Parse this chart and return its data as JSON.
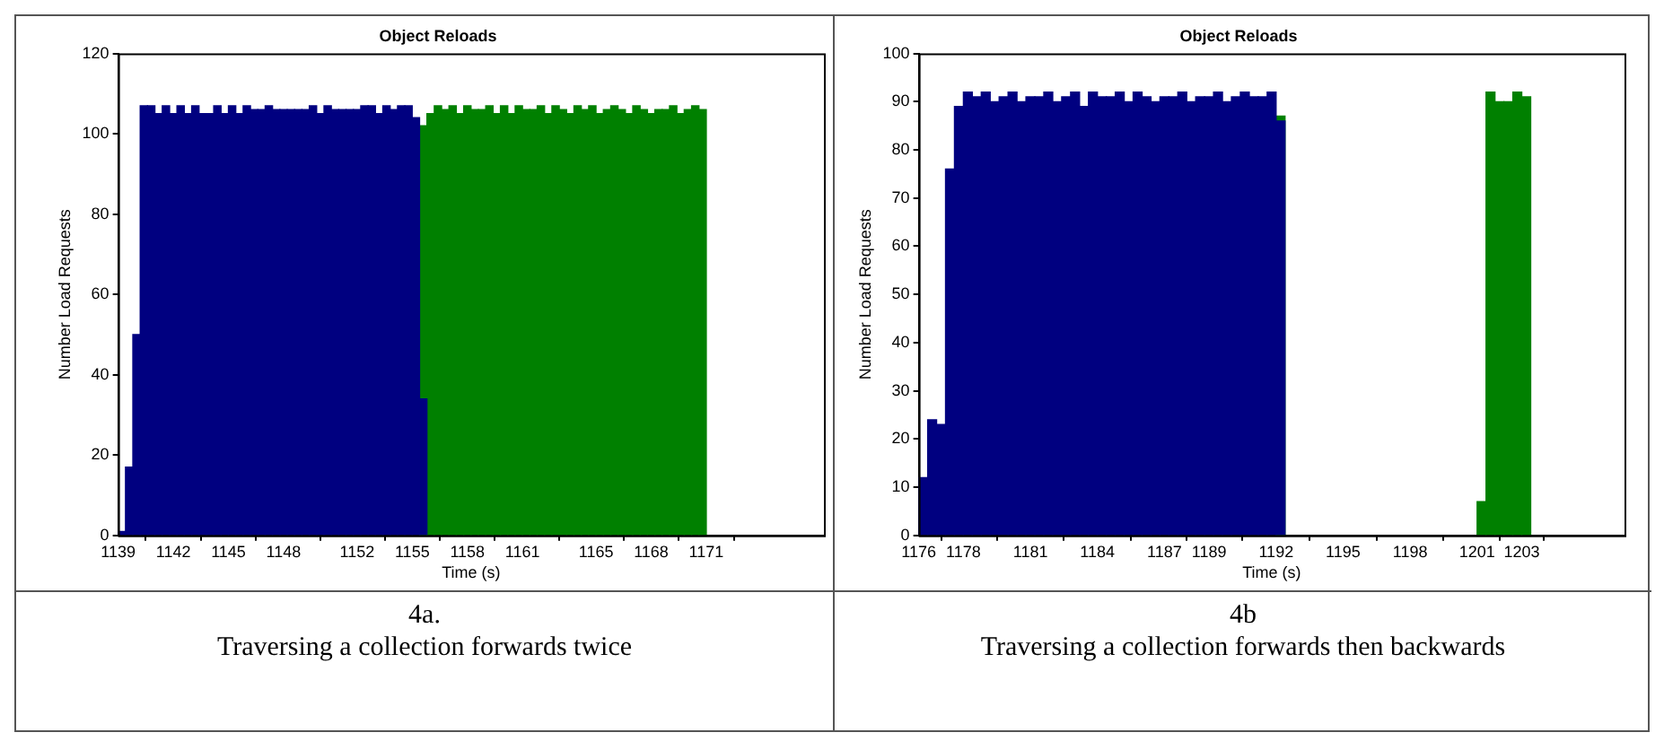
{
  "chart_data": [
    {
      "type": "bar",
      "title": "Object Reloads",
      "xlabel": "Time (s)",
      "ylabel": "Number Load Requests",
      "annotations": [
        "4a.",
        "Traversing a collection forwards twice"
      ],
      "xlim": [
        1139,
        1177.4
      ],
      "xticks": [
        1139,
        1142,
        1145,
        1148,
        1152,
        1155,
        1158,
        1161,
        1165,
        1168,
        1171
      ],
      "ylim": [
        0,
        120
      ],
      "yticks": [
        0,
        20,
        40,
        60,
        80,
        100,
        120
      ],
      "series": [
        {
          "color": "#000080",
          "x": [
            1139.2,
            1139.6,
            1140,
            1140.4,
            1140.8,
            1141.2,
            1141.6,
            1142,
            1142.4,
            1142.8,
            1143.2,
            1143.6,
            1144,
            1144.4,
            1144.8,
            1145.2,
            1145.6,
            1146,
            1146.4,
            1146.8,
            1147.2,
            1147.6,
            1148,
            1148.4,
            1148.8,
            1149.2,
            1149.6,
            1150,
            1150.4,
            1150.8,
            1151.2,
            1151.6,
            1152,
            1152.4,
            1152.8,
            1153.2,
            1153.6,
            1154,
            1154.4,
            1154.8,
            1155.2,
            1155.6
          ],
          "values": [
            1,
            17,
            50,
            107,
            107,
            105,
            107,
            105,
            107,
            105,
            107,
            105,
            105,
            107,
            105,
            107,
            105,
            107,
            106,
            106,
            107,
            106,
            106,
            106,
            106,
            106,
            107,
            105,
            107,
            106,
            106,
            106,
            106,
            107,
            107,
            105,
            107,
            106,
            107,
            107,
            104,
            34
          ]
        },
        {
          "color": "#008000",
          "x": [
            1155.6,
            1156,
            1156.4,
            1156.8,
            1157.2,
            1157.6,
            1158,
            1158.4,
            1158.8,
            1159.2,
            1159.6,
            1160,
            1160.4,
            1160.8,
            1161.2,
            1161.6,
            1162,
            1162.4,
            1162.8,
            1163.2,
            1163.6,
            1164,
            1164.4,
            1164.8,
            1165.2,
            1165.6,
            1166,
            1166.4,
            1166.8,
            1167.2,
            1167.6,
            1168,
            1168.4,
            1168.8,
            1169.2,
            1169.6,
            1170,
            1170.4,
            1170.8
          ],
          "values": [
            102,
            105,
            107,
            106,
            107,
            105,
            107,
            106,
            106,
            107,
            105,
            107,
            105,
            107,
            106,
            106,
            107,
            105,
            107,
            106,
            105,
            107,
            106,
            107,
            105,
            106,
            107,
            106,
            105,
            107,
            106,
            105,
            106,
            106,
            107,
            105,
            106,
            107,
            106
          ]
        }
      ]
    },
    {
      "type": "bar",
      "title": "Object Reloads",
      "xlabel": "Time (s)",
      "ylabel": "Number Load Requests",
      "annotations": [
        "4b",
        "Traversing a collection forwards then backwards"
      ],
      "xlim": [
        1176,
        1207.6
      ],
      "xticks": [
        1176,
        1178,
        1181,
        1184,
        1187,
        1189,
        1192,
        1195,
        1198,
        1201,
        1203
      ],
      "ylim": [
        0,
        100
      ],
      "yticks": [
        0,
        10,
        20,
        30,
        40,
        50,
        60,
        70,
        80,
        90,
        100
      ],
      "series": [
        {
          "color": "#000080",
          "x": [
            1176.2,
            1176.6,
            1177,
            1177.4,
            1177.8,
            1178.2,
            1178.6,
            1179,
            1179.4,
            1179.8,
            1180.2,
            1180.6,
            1181,
            1181.4,
            1181.8,
            1182.2,
            1182.6,
            1183,
            1183.4,
            1183.8,
            1184.2,
            1184.6,
            1185,
            1185.4,
            1185.8,
            1186.2,
            1186.6,
            1187,
            1187.4,
            1187.8,
            1188.2,
            1188.6,
            1189,
            1189.4,
            1189.8,
            1190.2,
            1190.6,
            1191,
            1191.4,
            1191.8,
            1192.2
          ],
          "values": [
            12,
            24,
            23,
            76,
            89,
            92,
            91,
            92,
            90,
            91,
            92,
            90,
            91,
            91,
            92,
            90,
            91,
            92,
            89,
            92,
            91,
            91,
            92,
            90,
            92,
            91,
            90,
            91,
            91,
            92,
            90,
            91,
            91,
            92,
            90,
            91,
            92,
            91,
            91,
            92,
            86
          ]
        },
        {
          "color": "#008000",
          "x": [
            1192.2,
            1201.2,
            1201.6,
            1202,
            1202.4,
            1202.8,
            1203.2
          ],
          "values": [
            87,
            7,
            92,
            90,
            90,
            92,
            91
          ]
        }
      ]
    }
  ]
}
